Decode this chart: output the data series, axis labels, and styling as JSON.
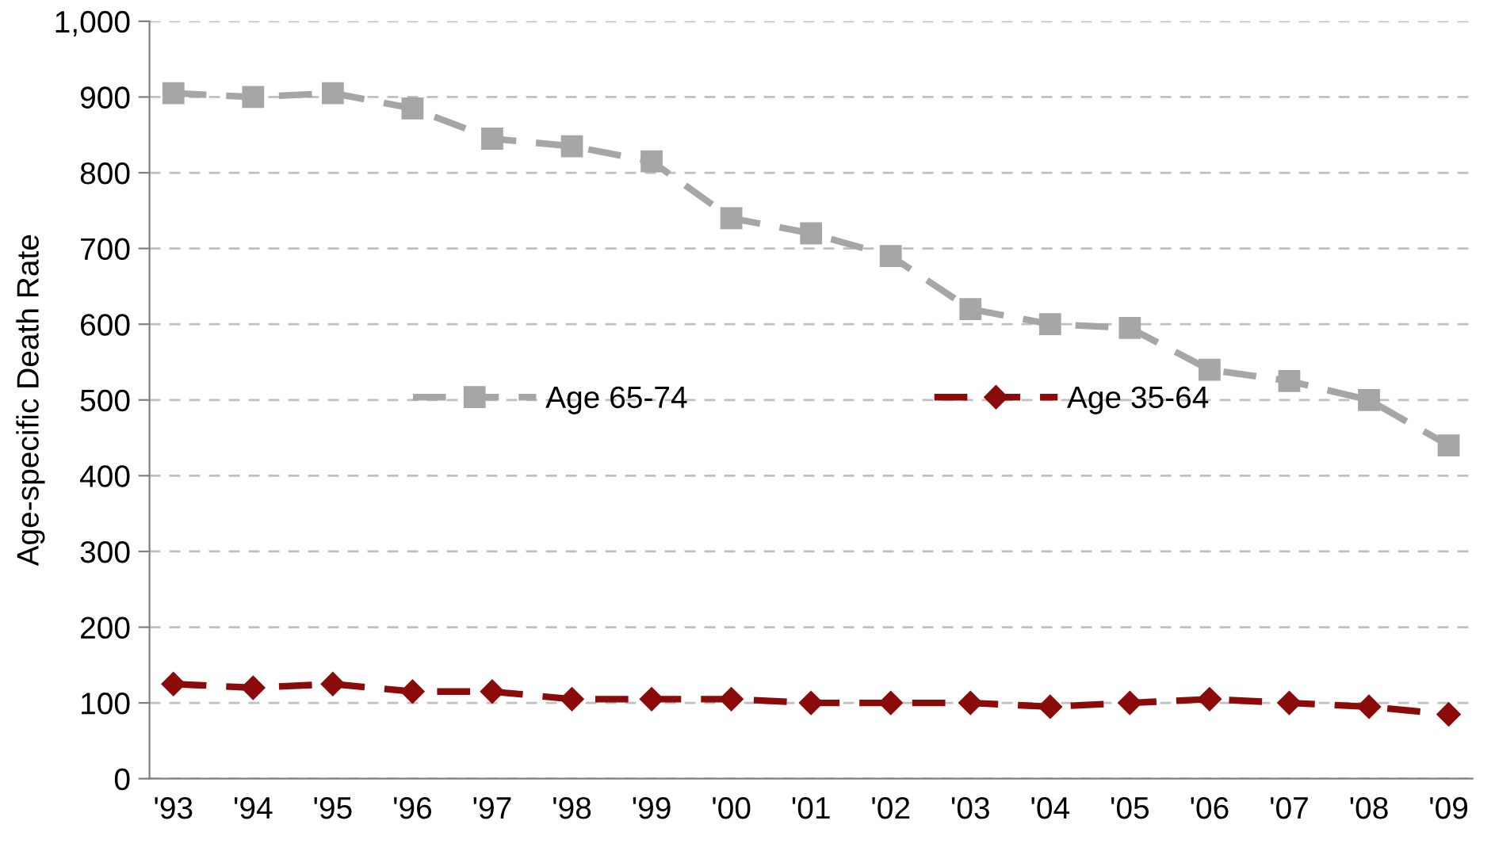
{
  "chart_data": {
    "type": "line",
    "ylabel": "Age-specific Death Rate",
    "categories": [
      "'93",
      "'94",
      "'95",
      "'96",
      "'97",
      "'98",
      "'99",
      "'00",
      "'01",
      "'02",
      "'03",
      "'04",
      "'05",
      "'06",
      "'07",
      "'08",
      "'09"
    ],
    "series": [
      {
        "name": "Age 65-74",
        "color": "#a6a6a6",
        "marker": "square",
        "line_style": "dashed",
        "values": [
          905,
          900,
          905,
          885,
          845,
          835,
          815,
          740,
          720,
          690,
          620,
          600,
          595,
          540,
          525,
          500,
          440
        ]
      },
      {
        "name": "Age 35-64",
        "color": "#8b0a0a",
        "marker": "diamond",
        "line_style": "dashed",
        "values": [
          125,
          120,
          125,
          115,
          115,
          105,
          105,
          105,
          100,
          100,
          100,
          95,
          100,
          105,
          100,
          95,
          85
        ]
      }
    ],
    "ylim": [
      0,
      1000
    ],
    "yticks": [
      0,
      100,
      200,
      300,
      400,
      500,
      600,
      700,
      800,
      900,
      {
        "value": 1000,
        "label": "1,000"
      }
    ],
    "grid": "y",
    "legend": "center"
  }
}
